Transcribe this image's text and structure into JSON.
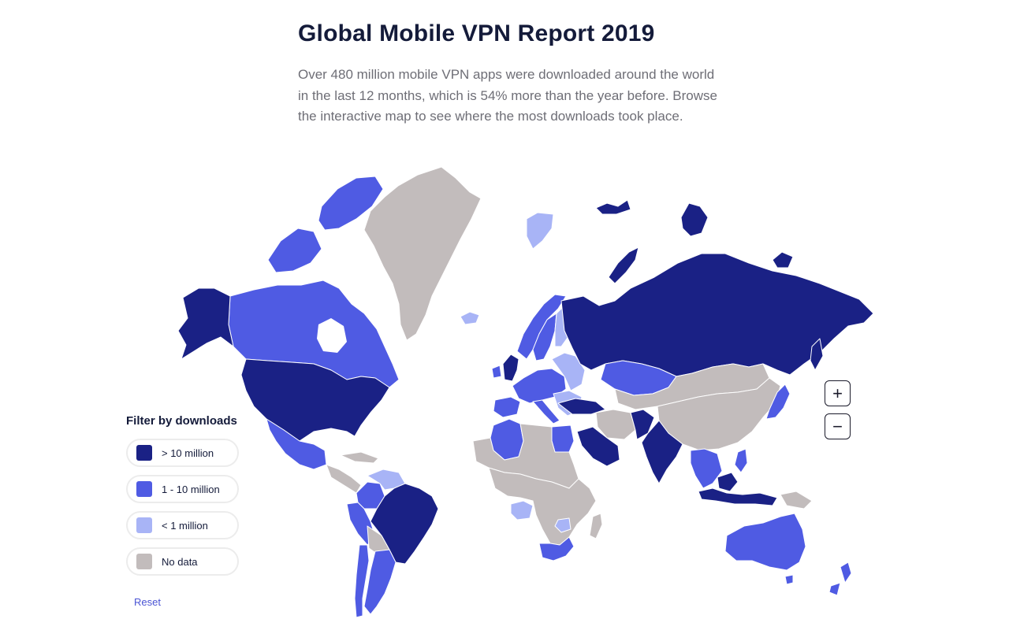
{
  "header": {
    "title": "Global Mobile VPN Report 2019",
    "intro": "Over 480 million mobile VPN apps were downloaded around the world in the last 12 months, which is 54% more than the year before. Browse the interactive map to see where the most downloads took place."
  },
  "legend": {
    "title": "Filter by downloads",
    "items": [
      {
        "label": "> 10 million",
        "color": "#1a2185"
      },
      {
        "label": "1 - 10 million",
        "color": "#4f5be3"
      },
      {
        "label": "< 1 million",
        "color": "#a8b4f6"
      },
      {
        "label": "No data",
        "color": "#c2bcbc"
      }
    ],
    "reset_label": "Reset"
  },
  "zoom": {
    "in_label": "+",
    "out_label": "−"
  },
  "map": {
    "colors": {
      "high": "#1a2185",
      "mid": "#4f5be3",
      "low": "#a8b4f6",
      "none": "#c2bcbc",
      "border": "#ffffff"
    },
    "regions": {
      "alaska": "high",
      "canada": "mid",
      "greenland": "none",
      "iceland": "low",
      "usa": "high",
      "mexico": "mid",
      "central-america": "none",
      "colombia": "mid",
      "venezuela": "low",
      "peru": "mid",
      "brazil": "high",
      "bolivia": "none",
      "argentina": "mid",
      "chile": "mid",
      "norway": "mid",
      "sweden": "mid",
      "finland": "low",
      "uk": "high",
      "western-europe": "mid",
      "eastern-europe": "low",
      "spain": "mid",
      "italy": "mid",
      "turkey": "high",
      "russia": "high",
      "kazakhstan": "mid",
      "mongolia-central-asia": "none",
      "china": "none",
      "japan": "mid",
      "india": "high",
      "pakistan": "high",
      "iran": "none",
      "saudi-arabia": "high",
      "egypt": "mid",
      "algeria": "mid",
      "north-africa-other": "none",
      "africa-interior": "none",
      "nigeria": "low",
      "zimbabwe": "low",
      "south-africa": "mid",
      "madagascar": "none",
      "southeast-asia": "mid",
      "indonesia": "high",
      "papua": "none",
      "australia": "mid",
      "new-zealand": "mid",
      "svalbard": "low",
      "franz-josef": "high",
      "novaya-zemlya": "high",
      "severnaya-zemlya": "high",
      "new-siberian": "high"
    }
  }
}
